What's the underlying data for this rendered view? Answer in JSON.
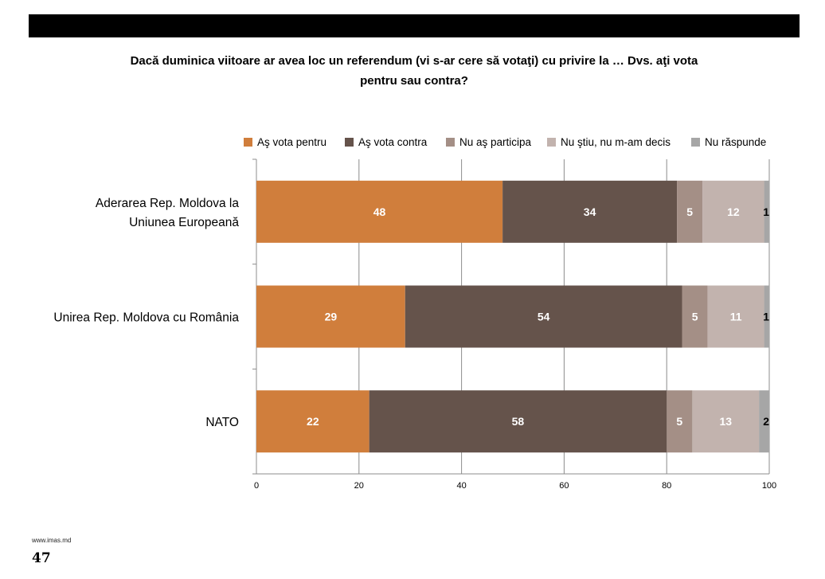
{
  "chart_data": {
    "type": "bar",
    "orientation": "horizontal",
    "stacked": true,
    "title": "Dacă duminica viitoare ar avea loc un referendum (vi s-ar cere să votaţi) cu privire la … Dvs. aţi vota pentru sau contra?",
    "title_lines": [
      "Dacă duminica viitoare ar avea loc un referendum (vi s-ar cere să votaţi) cu privire la … Dvs. aţi vota",
      "pentru sau contra?"
    ],
    "categories": [
      [
        "Aderarea Rep. Moldova la",
        "Uniunea Europeană"
      ],
      [
        "Unirea Rep. Moldova cu România"
      ],
      [
        "NATO"
      ]
    ],
    "series": [
      {
        "name": "Aş vota pentru",
        "color": "#D07E3C",
        "values": [
          48,
          29,
          22
        ]
      },
      {
        "name": "Aş vota contra",
        "color": "#65534B",
        "values": [
          34,
          54,
          58
        ]
      },
      {
        "name": "Nu aş participa",
        "color": "#A48F86",
        "values": [
          5,
          5,
          5
        ]
      },
      {
        "name": "Nu ştiu, nu m-am decis",
        "color": "#C2B3AE",
        "values": [
          12,
          11,
          13
        ]
      },
      {
        "name": "Nu răspunde",
        "color": "#A6A6A6",
        "values": [
          1,
          1,
          2
        ]
      }
    ],
    "xlim": [
      0,
      100
    ],
    "xticks": [
      "0",
      "20",
      "40",
      "60",
      "80",
      "100"
    ],
    "grid": "vertical",
    "legend": "top",
    "data_labels": true
  },
  "header": {
    "bar_color": "#000000"
  },
  "footer": {
    "url": "www.imas.md",
    "page": "47"
  }
}
